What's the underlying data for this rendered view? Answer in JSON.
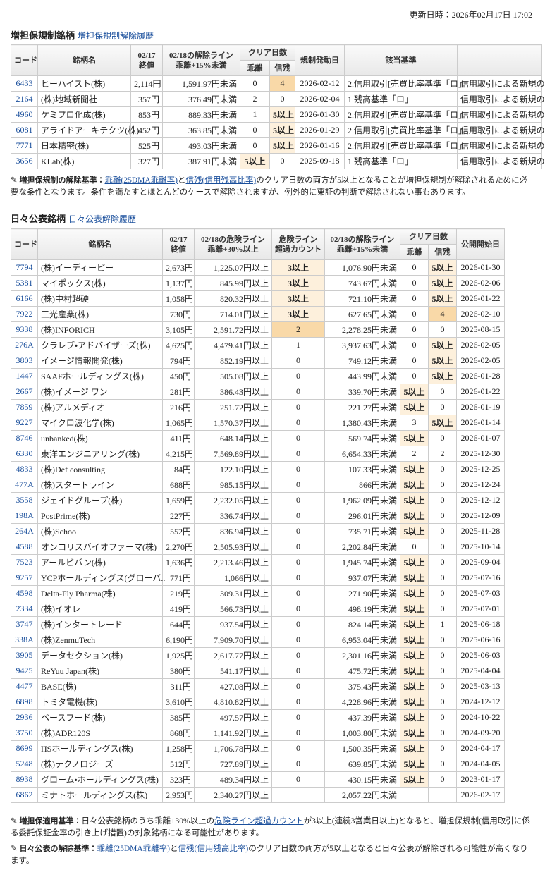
{
  "header": {
    "updated": "更新日時：2026年02月17日 17:02"
  },
  "restricted": {
    "title": "増担保規制銘柄",
    "history_link": "増担保規制解除履歴",
    "columns": [
      {
        "lines": [
          "コード"
        ]
      },
      {
        "lines": [
          "銘柄名"
        ]
      },
      {
        "lines": [
          "02/17",
          "終値"
        ]
      },
      {
        "lines": [
          "02/18の解除ライン",
          "乖離+15%未満"
        ]
      },
      {
        "group": "クリア日数",
        "sub": [
          "乖離",
          "信残"
        ]
      },
      {
        "lines": [
          "規制発動日"
        ]
      },
      {
        "lines": [
          "該当基準"
        ]
      }
    ],
    "rows": [
      [
        "6433",
        "ヒーハイスト(株)",
        "2,114円",
        "1,591.97円未満",
        "0",
        "4",
        "2026-02-12",
        "2.信用取引[売買比率基準「ロ」",
        "信用取引による新規の"
      ],
      [
        "2164",
        "(株)地域新聞社",
        "357円",
        "376.49円未満",
        "2",
        "0",
        "2026-02-04",
        "1.残高基準「ロ」",
        "信用取引による新規の"
      ],
      [
        "4960",
        "ケミプロ化成(株)",
        "853円",
        "889.33円未満",
        "1",
        "5以上",
        "2026-01-30",
        "2.信用取引[売買比率基準「ロ」",
        "信用取引による新規の"
      ],
      [
        "6081",
        "アライドアーキテクツ(株)",
        "452円",
        "363.85円未満",
        "0",
        "5以上",
        "2026-01-29",
        "2.信用取引[売買比率基準「ロ」",
        "信用取引による新規の"
      ],
      [
        "7771",
        "日本精密(株)",
        "525円",
        "493.03円未満",
        "0",
        "5以上",
        "2026-01-16",
        "2.信用取引[売買比率基準「ロ」",
        "信用取引による新規の"
      ],
      [
        "3656",
        "KLab(株)",
        "327円",
        "387.91円未満",
        "5以上",
        "0",
        "2025-09-18",
        "1.残高基準「ロ」",
        "信用取引による新規の"
      ]
    ],
    "notes": [
      {
        "label": "増担保規制の解除基準：",
        "parts": [
          {
            "text": "乖離(25DMA乖離率)",
            "link": true
          },
          {
            "text": "と"
          },
          {
            "text": "信残(信用残高比率)",
            "link": true
          },
          {
            "text": "のクリア日数の両方が5以上となることが増担保規制が解除されるために必要な条件となります。条件を満たすとほとんどのケースで解除されますが、例外的に東証の判断で解除されない事もあります。"
          }
        ]
      }
    ]
  },
  "daily": {
    "title": "日々公表銘柄",
    "history_link": "日々公表解除履歴",
    "columns": [
      {
        "lines": [
          "コード"
        ]
      },
      {
        "lines": [
          "銘柄名"
        ]
      },
      {
        "lines": [
          "02/17",
          "終値"
        ]
      },
      {
        "lines": [
          "02/18の危険ライン",
          "乖離+30%以上"
        ]
      },
      {
        "lines": [
          "危険ライン",
          "超過カウント"
        ]
      },
      {
        "lines": [
          "02/18の解除ライン",
          "乖離+15%未満"
        ]
      },
      {
        "group": "クリア日数",
        "sub": [
          "乖離",
          "信残"
        ]
      },
      {
        "lines": [
          "公開開始日"
        ]
      }
    ],
    "rows": [
      [
        "7794",
        "(株)イーディーピー",
        "2,673円",
        "1,225.07円以上",
        "3以上",
        "1,076.90円未満",
        "0",
        "5以上",
        "2026-01-30"
      ],
      [
        "5381",
        "マイポックス(株)",
        "1,137円",
        "845.99円以上",
        "3以上",
        "743.67円未満",
        "0",
        "5以上",
        "2026-02-06"
      ],
      [
        "6166",
        "(株)中村超硬",
        "1,058円",
        "820.32円以上",
        "3以上",
        "721.10円未満",
        "0",
        "5以上",
        "2026-01-22"
      ],
      [
        "7922",
        "三光産業(株)",
        "730円",
        "714.01円以上",
        "3以上",
        "627.65円未満",
        "0",
        "4",
        "2026-02-10"
      ],
      [
        "9338",
        "(株)INFORICH",
        "3,105円",
        "2,591.72円以上",
        "2",
        "2,278.25円未満",
        "0",
        "0",
        "2025-08-15"
      ],
      [
        "276A",
        "クラレブ・アドバイザーズ(株)",
        "4,625円",
        "4,479.41円以上",
        "1",
        "3,937.63円未満",
        "0",
        "5以上",
        "2026-02-05"
      ],
      [
        "3803",
        "イメージ情報開発(株)",
        "794円",
        "852.19円以上",
        "0",
        "749.12円未満",
        "0",
        "5以上",
        "2026-02-05"
      ],
      [
        "1447",
        "SAAFホールディングス(株)",
        "450円",
        "505.08円以上",
        "0",
        "443.99円未満",
        "0",
        "5以上",
        "2026-01-28"
      ],
      [
        "2667",
        "(株)イメージ ワン",
        "281円",
        "386.43円以上",
        "0",
        "339.70円未満",
        "5以上",
        "0",
        "2026-01-22"
      ],
      [
        "7859",
        "(株)アルメディオ",
        "216円",
        "251.72円以上",
        "0",
        "221.27円未満",
        "5以上",
        "0",
        "2026-01-19"
      ],
      [
        "9227",
        "マイクロ波化学(株)",
        "1,065円",
        "1,570.37円以上",
        "0",
        "1,380.43円未満",
        "3",
        "5以上",
        "2026-01-14"
      ],
      [
        "8746",
        "unbanked(株)",
        "411円",
        "648.14円以上",
        "0",
        "569.74円未満",
        "5以上",
        "0",
        "2026-01-07"
      ],
      [
        "6330",
        "東洋エンジニアリング(株)",
        "4,215円",
        "7,569.89円以上",
        "0",
        "6,654.33円未満",
        "2",
        "2",
        "2025-12-30"
      ],
      [
        "4833",
        "(株)Def consulting",
        "84円",
        "122.10円以上",
        "0",
        "107.33円未満",
        "5以上",
        "0",
        "2025-12-25"
      ],
      [
        "477A",
        "(株)スタートライン",
        "688円",
        "985.15円以上",
        "0",
        "866円未満",
        "5以上",
        "0",
        "2025-12-24"
      ],
      [
        "3558",
        "ジェイドグループ(株)",
        "1,659円",
        "2,232.05円以上",
        "0",
        "1,962.09円未満",
        "5以上",
        "0",
        "2025-12-12"
      ],
      [
        "198A",
        "PostPrime(株)",
        "227円",
        "336.74円以上",
        "0",
        "296.01円未満",
        "5以上",
        "0",
        "2025-12-09"
      ],
      [
        "264A",
        "(株)Schoo",
        "552円",
        "836.94円以上",
        "0",
        "735.71円未満",
        "5以上",
        "0",
        "2025-11-28"
      ],
      [
        "4588",
        "オンコリスバイオファーマ(株)",
        "2,270円",
        "2,505.93円以上",
        "0",
        "2,202.84円未満",
        "0",
        "0",
        "2025-10-14"
      ],
      [
        "7523",
        "アールビバン(株)",
        "1,636円",
        "2,213.46円以上",
        "0",
        "1,945.74円未満",
        "5以上",
        "0",
        "2025-09-04"
      ],
      [
        "9257",
        "YCPホールディングス(グローバ..",
        "771円",
        "1,066円以上",
        "0",
        "937.07円未満",
        "5以上",
        "0",
        "2025-07-16"
      ],
      [
        "4598",
        "Delta-Fly Pharma(株)",
        "219円",
        "309.31円以上",
        "0",
        "271.90円未満",
        "5以上",
        "0",
        "2025-07-03"
      ],
      [
        "2334",
        "(株)イオレ",
        "419円",
        "566.73円以上",
        "0",
        "498.19円未満",
        "5以上",
        "0",
        "2025-07-01"
      ],
      [
        "3747",
        "(株)インタートレード",
        "644円",
        "937.54円以上",
        "0",
        "824.14円未満",
        "5以上",
        "1",
        "2025-06-18"
      ],
      [
        "338A",
        "(株)ZenmuTech",
        "6,190円",
        "7,909.70円以上",
        "0",
        "6,953.04円未満",
        "5以上",
        "0",
        "2025-06-16"
      ],
      [
        "3905",
        "データセクション(株)",
        "1,925円",
        "2,617.77円以上",
        "0",
        "2,301.16円未満",
        "5以上",
        "0",
        "2025-06-03"
      ],
      [
        "9425",
        "ReYuu Japan(株)",
        "380円",
        "541.17円以上",
        "0",
        "475.72円未満",
        "5以上",
        "0",
        "2025-04-04"
      ],
      [
        "4477",
        "BASE(株)",
        "311円",
        "427.08円以上",
        "0",
        "375.43円未満",
        "5以上",
        "0",
        "2025-03-13"
      ],
      [
        "6898",
        "トミタ電機(株)",
        "3,610円",
        "4,810.82円以上",
        "0",
        "4,228.96円未満",
        "5以上",
        "0",
        "2024-12-12"
      ],
      [
        "2936",
        "ベースフード(株)",
        "385円",
        "497.57円以上",
        "0",
        "437.39円未満",
        "5以上",
        "0",
        "2024-10-22"
      ],
      [
        "3750",
        "(株)ADR120S",
        "868円",
        "1,141.92円以上",
        "0",
        "1,003.80円未満",
        "5以上",
        "0",
        "2024-09-20"
      ],
      [
        "8699",
        "HSホールディングス(株)",
        "1,258円",
        "1,706.78円以上",
        "0",
        "1,500.35円未満",
        "5以上",
        "0",
        "2024-04-17"
      ],
      [
        "5248",
        "(株)テクノロジーズ",
        "512円",
        "727.89円以上",
        "0",
        "639.85円未満",
        "5以上",
        "0",
        "2024-04-05"
      ],
      [
        "8938",
        "グローム・ホールディングス(株)",
        "323円",
        "489.34円以上",
        "0",
        "430.15円未満",
        "5以上",
        "0",
        "2023-01-17"
      ],
      [
        "6862",
        "ミナトホールディングス(株)",
        "2,953円",
        "2,340.27円以上",
        "－",
        "2,057.22円未満",
        "－",
        "－",
        "2026-02-17"
      ]
    ],
    "notes": [
      {
        "label": "増担保適用基準：",
        "parts": [
          {
            "text": "日々公表銘柄のうち乖離+30%以上の"
          },
          {
            "text": "危険ライン超過カウント",
            "link": true
          },
          {
            "text": "が3以上(連続3営業日以上)となると、増担保規制(信用取引に係る委託保証金率の引き上げ措置)の対象銘柄になる可能性があります。"
          }
        ]
      },
      {
        "label": "日々公表の解除基準：",
        "parts": [
          {
            "text": "乖離(25DMA乖離率)",
            "link": true
          },
          {
            "text": "と"
          },
          {
            "text": "信残(信用残高比率)",
            "link": true
          },
          {
            "text": "のクリア日数の両方が5以上となると日々公表が解除される可能性が高くなります。"
          }
        ]
      }
    ]
  }
}
